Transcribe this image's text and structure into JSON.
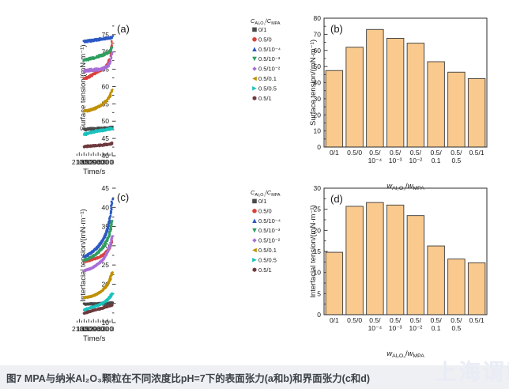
{
  "caption": {
    "text": "图7 MPA与纳米Al₂O₃颗粒在不同浓度比pH=7下的表面张力(a和b)和界面张力(c和d)"
  },
  "watermark": {
    "text": "上海谓载"
  },
  "colors": {
    "bar_fill": "#f9c98d",
    "bar_stroke": "#3a3a3a",
    "axis": "#2b2b2b",
    "caption_bg": "#eef0f4",
    "series_gray": "#4a4a4a",
    "series_red": "#d8433c",
    "series_blue": "#2d59c5",
    "series_green": "#2f9e60",
    "series_purple": "#a96fd6",
    "series_darkyellow": "#c09104",
    "series_cyan": "#1ac2bd",
    "series_maroon": "#6e3a3e"
  },
  "chart_data": [
    {
      "id": "a",
      "type": "line",
      "panel_label": "(a)",
      "xlabel": "Time/s",
      "ylabel": "Surface tension/(mN·m⁻¹)",
      "xlim": [
        0,
        2300
      ],
      "ylim": [
        40,
        79.3
      ],
      "xticks": [
        0,
        300,
        600,
        900,
        1200,
        1500,
        1800,
        2100
      ],
      "yticks": [
        40,
        45,
        50,
        55,
        60,
        65,
        70,
        75
      ],
      "x_minor_step": 150,
      "y_minor_step": 2.5,
      "legend_title_parts": [
        [
          "C",
          "i"
        ],
        [
          "Al₂O₃",
          "s"
        ],
        [
          "/",
          "n"
        ],
        [
          "C",
          "i"
        ],
        [
          "MPA",
          "s"
        ]
      ],
      "x_samples": [
        0,
        150,
        300,
        450,
        600,
        750,
        900,
        1050,
        1200,
        1350,
        1500,
        1650,
        1800
      ],
      "series": [
        {
          "name": "0/1",
          "marker": "square",
          "color": "#4a4a4a",
          "noise": 0.28,
          "values": [
            48.2,
            48.1,
            48.0,
            48.0,
            47.9,
            47.9,
            47.9,
            47.8,
            47.8,
            47.8,
            47.7,
            47.6,
            47.5
          ]
        },
        {
          "name": "0.5/0",
          "marker": "circle",
          "color": "#d8433c",
          "noise": 0.3,
          "values": [
            73.0,
            68.0,
            66.3,
            65.5,
            65.0,
            64.7,
            64.4,
            64.0,
            63.5,
            63.1,
            62.8,
            62.5,
            62.3
          ]
        },
        {
          "name": "0.5/10⁻⁴",
          "marker": "triangle-up",
          "color": "#2d59c5",
          "noise": 0.3,
          "values": [
            74.3,
            74.1,
            74.0,
            73.9,
            73.8,
            73.7,
            73.6,
            73.5,
            73.4,
            73.3,
            73.2,
            73.1,
            73.0
          ]
        },
        {
          "name": "0.5/10⁻³",
          "marker": "triangle-down",
          "color": "#2f9e60",
          "noise": 0.32,
          "values": [
            71.2,
            70.2,
            69.7,
            69.4,
            69.1,
            68.9,
            68.7,
            68.5,
            68.3,
            68.1,
            67.9,
            67.7,
            67.6
          ]
        },
        {
          "name": "0.5/10⁻²",
          "marker": "diamond",
          "color": "#a96fd6",
          "noise": 0.38,
          "values": [
            69.8,
            66.8,
            65.8,
            65.4,
            65.2,
            65.0,
            64.9,
            64.9,
            64.8,
            64.8,
            64.7,
            64.6,
            64.5
          ]
        },
        {
          "name": "0.5/0.1",
          "marker": "triangle-left",
          "color": "#c09104",
          "noise": 0.28,
          "values": [
            59.0,
            57.3,
            56.3,
            55.6,
            55.0,
            54.5,
            54.1,
            53.8,
            53.5,
            53.3,
            53.1,
            53.0,
            53.0
          ]
        },
        {
          "name": "0.5/0.5",
          "marker": "triangle-right",
          "color": "#1ac2bd",
          "noise": 0.32,
          "values": [
            47.9,
            47.7,
            47.6,
            47.5,
            47.4,
            47.3,
            47.2,
            47.1,
            46.9,
            46.7,
            46.5,
            46.3,
            46.2
          ]
        },
        {
          "name": "0.5/1",
          "marker": "hexagon",
          "color": "#6e3a3e",
          "noise": 0.26,
          "values": [
            43.6,
            43.4,
            43.3,
            43.2,
            43.1,
            43.0,
            43.0,
            42.9,
            42.9,
            42.8,
            42.8,
            42.7,
            42.6
          ]
        }
      ]
    },
    {
      "id": "b",
      "type": "bar",
      "panel_label": "(b)",
      "ylabel": "Surface tension/(mN·m⁻¹)",
      "xlabel_parts": [
        [
          "w",
          "i"
        ],
        [
          "Al₂O₃",
          "s"
        ],
        [
          "/",
          "n"
        ],
        [
          "w",
          "i"
        ],
        [
          "MPA",
          "s"
        ]
      ],
      "ylim": [
        0,
        80
      ],
      "yticks": [
        0,
        10,
        20,
        30,
        40,
        50,
        60,
        70,
        80
      ],
      "y_minor_step": 5,
      "categories": [
        [
          "0/1"
        ],
        [
          "0.5/0"
        ],
        [
          "0.5/",
          "10⁻⁴"
        ],
        [
          "0.5/",
          "10⁻³"
        ],
        [
          "0.5/",
          "10⁻²"
        ],
        [
          "0.5/",
          "0.1"
        ],
        [
          "0.5/",
          "0.5"
        ],
        [
          "0.5/1"
        ]
      ],
      "values": [
        47.5,
        62,
        73,
        67.5,
        64.5,
        53,
        46.5,
        42.5
      ],
      "bar_fill": "#f9c98d",
      "bar_stroke": "#3a3a3a"
    },
    {
      "id": "c",
      "type": "line",
      "panel_label": "(c)",
      "xlabel": "Time/s",
      "ylabel": "Interfacial tension/(mN·m⁻¹)",
      "xlim": [
        0,
        2300
      ],
      "ylim": [
        10,
        45
      ],
      "xticks": [
        0,
        300,
        600,
        900,
        1200,
        1500,
        1800,
        2100
      ],
      "yticks": [
        10,
        15,
        20,
        25,
        30,
        35,
        40,
        45
      ],
      "x_minor_step": 150,
      "y_minor_step": 2.5,
      "legend_title_parts": [
        [
          "C",
          "i"
        ],
        [
          "Al₂O₃",
          "s"
        ],
        [
          "/",
          "n"
        ],
        [
          "C",
          "i"
        ],
        [
          "MPA",
          "s"
        ]
      ],
      "x_samples": [
        0,
        150,
        300,
        450,
        600,
        750,
        900,
        1050,
        1200,
        1350,
        1500,
        1650,
        1800
      ],
      "series": [
        {
          "name": "0/1",
          "marker": "square",
          "color": "#4a4a4a",
          "noise": 0.15,
          "values": [
            15.1,
            15.1,
            15.0,
            15.0,
            15.0,
            15.0,
            14.9,
            14.9,
            14.9,
            14.9,
            14.8,
            14.8,
            14.8
          ]
        },
        {
          "name": "0.5/0",
          "marker": "circle",
          "color": "#d8433c",
          "noise": 0.12,
          "values": [
            31.3,
            29.6,
            28.7,
            28.1,
            27.6,
            27.2,
            26.9,
            26.7,
            26.5,
            26.3,
            26.1,
            26.0,
            25.9
          ]
        },
        {
          "name": "0.5/10⁻⁴",
          "marker": "triangle-up",
          "color": "#2d59c5",
          "noise": 0.14,
          "values": [
            42.0,
            36.8,
            34.3,
            32.7,
            31.5,
            30.6,
            29.8,
            29.2,
            28.7,
            28.2,
            27.8,
            27.4,
            27.1
          ]
        },
        {
          "name": "0.5/10⁻³",
          "marker": "triangle-down",
          "color": "#2f9e60",
          "noise": 0.14,
          "values": [
            36.4,
            33.3,
            31.7,
            30.5,
            29.6,
            28.9,
            28.3,
            27.8,
            27.4,
            27.0,
            26.7,
            26.4,
            26.2
          ]
        },
        {
          "name": "0.5/10⁻²",
          "marker": "diamond",
          "color": "#a96fd6",
          "noise": 0.14,
          "values": [
            32.5,
            29.8,
            28.3,
            27.2,
            26.4,
            25.8,
            25.3,
            24.8,
            24.5,
            24.1,
            23.9,
            23.7,
            23.5
          ]
        },
        {
          "name": "0.5/0.1",
          "marker": "triangle-left",
          "color": "#c09104",
          "noise": 0.12,
          "values": [
            23.0,
            21.2,
            20.0,
            19.2,
            18.5,
            18.0,
            17.6,
            17.3,
            17.0,
            16.8,
            16.7,
            16.6,
            16.5
          ]
        },
        {
          "name": "0.5/0.5",
          "marker": "triangle-right",
          "color": "#1ac2bd",
          "noise": 0.13,
          "values": [
            17.6,
            16.6,
            16.0,
            15.5,
            15.1,
            14.8,
            14.5,
            14.3,
            14.1,
            13.9,
            13.7,
            13.5,
            13.3
          ]
        },
        {
          "name": "0.5/1",
          "marker": "hexagon",
          "color": "#6e3a3e",
          "noise": 0.15,
          "values": [
            14.6,
            14.4,
            14.2,
            14.0,
            13.8,
            13.6,
            13.5,
            13.3,
            13.2,
            13.0,
            12.8,
            12.6,
            12.4
          ]
        }
      ]
    },
    {
      "id": "d",
      "type": "bar",
      "panel_label": "(d)",
      "ylabel": "Interfacial tension/(mN·m⁻¹)",
      "xlabel_parts": [
        [
          "w",
          "i"
        ],
        [
          "Al₂O₃",
          "s"
        ],
        [
          "/",
          "n"
        ],
        [
          "w",
          "i"
        ],
        [
          "MPA",
          "s"
        ]
      ],
      "ylim": [
        0,
        30
      ],
      "yticks": [
        0,
        5,
        10,
        15,
        20,
        25,
        30
      ],
      "y_minor_step": 2.5,
      "categories": [
        [
          "0/1"
        ],
        [
          "0.5/0"
        ],
        [
          "0.5/",
          "10⁻⁴"
        ],
        [
          "0.5/",
          "10⁻³"
        ],
        [
          "0.5/",
          "10⁻²"
        ],
        [
          "0.5/",
          "0.1"
        ],
        [
          "0.5/",
          "0.5"
        ],
        [
          "0.5/1"
        ]
      ],
      "values": [
        14.8,
        25.7,
        26.6,
        26.0,
        23.5,
        16.3,
        13.2,
        12.3
      ],
      "bar_fill": "#f9c98d",
      "bar_stroke": "#3a3a3a"
    }
  ]
}
